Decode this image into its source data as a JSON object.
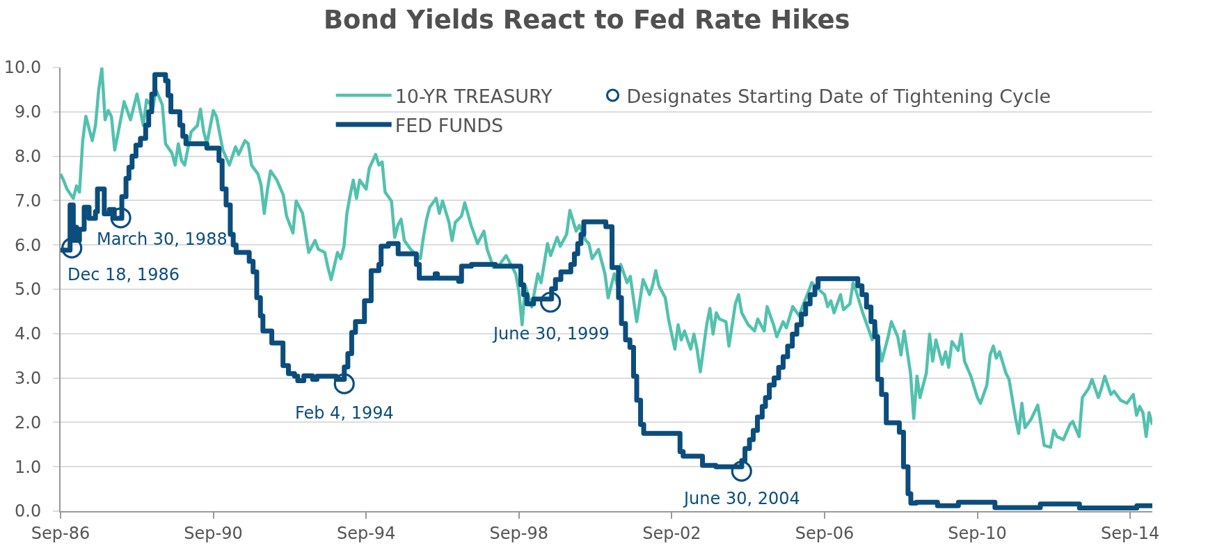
{
  "chart_data": {
    "type": "line",
    "title": "Bond Yields React to Fed Rate Hikes",
    "xlim": [
      "1986-09-01",
      "2015-04-01"
    ],
    "xticks": [
      {
        "value": "1986-09-01",
        "label": "Sep-86"
      },
      {
        "value": "1990-09-01",
        "label": "Sep-90"
      },
      {
        "value": "1994-09-01",
        "label": "Sep-94"
      },
      {
        "value": "1998-09-01",
        "label": "Sep-98"
      },
      {
        "value": "2002-09-01",
        "label": "Sep-02"
      },
      {
        "value": "2006-09-01",
        "label": "Sep-06"
      },
      {
        "value": "2010-09-01",
        "label": "Sep-10"
      },
      {
        "value": "2014-09-01",
        "label": "Sep-14"
      }
    ],
    "ylim": [
      0,
      10
    ],
    "yticks": [
      {
        "value": 0,
        "label": "0.0"
      },
      {
        "value": 1,
        "label": "1.0"
      },
      {
        "value": 2,
        "label": "2.0"
      },
      {
        "value": 3,
        "label": "3.0"
      },
      {
        "value": 4,
        "label": "4.0"
      },
      {
        "value": 5,
        "label": "5.0"
      },
      {
        "value": 6,
        "label": "6.0"
      },
      {
        "value": 7,
        "label": "7.0"
      },
      {
        "value": 8,
        "label": "8.0"
      },
      {
        "value": 9,
        "label": "9.0"
      },
      {
        "value": 10,
        "label": "10.0"
      }
    ],
    "grid": "y",
    "legend": "top",
    "series": [
      {
        "name": "10-YR TREASURY",
        "type": "line",
        "color": "#52c1ae",
        "x": [
          "1986-09",
          "1986-10",
          "1986-11",
          "1987-01",
          "1987-02",
          "1987-03",
          "1987-04",
          "1987-05",
          "1987-07",
          "1987-08",
          "1987-09",
          "1987-10",
          "1987-11",
          "1987-12",
          "1988-01",
          "1988-02",
          "1988-03",
          "1988-05",
          "1988-07",
          "1988-09",
          "1988-11",
          "1988-12",
          "1989-02",
          "1989-03",
          "1989-05",
          "1989-06",
          "1989-08",
          "1989-09",
          "1989-10",
          "1989-11",
          "1989-12",
          "1990-02",
          "1990-04",
          "1990-05",
          "1990-06",
          "1990-07",
          "1990-09",
          "1990-10",
          "1990-12",
          "1991-02",
          "1991-04",
          "1991-05",
          "1991-07",
          "1991-08",
          "1991-09",
          "1991-11",
          "1991-12",
          "1992-01",
          "1992-02",
          "1992-03",
          "1992-05",
          "1992-07",
          "1992-08",
          "1992-10",
          "1992-11",
          "1993-01",
          "1993-03",
          "1993-05",
          "1993-06",
          "1993-08",
          "1993-09",
          "1993-10",
          "1993-12",
          "1994-01",
          "1994-02",
          "1994-03",
          "1994-04",
          "1994-05",
          "1994-06",
          "1994-07",
          "1994-09",
          "1994-10",
          "1994-12",
          "1995-01",
          "1995-02",
          "1995-03",
          "1995-05",
          "1995-06",
          "1995-07",
          "1995-08",
          "1995-09",
          "1995-11",
          "1996-02",
          "1996-03",
          "1996-04",
          "1996-05",
          "1996-07",
          "1996-08",
          "1996-09",
          "1996-11",
          "1996-12",
          "1997-01",
          "1997-03",
          "1997-04",
          "1997-06",
          "1997-08",
          "1997-10",
          "1997-11",
          "1998-01",
          "1998-03",
          "1998-05",
          "1998-07",
          "1998-08",
          "1998-09",
          "1998-10",
          "1998-11",
          "1999-01",
          "1999-03",
          "1999-04",
          "1999-06",
          "1999-07",
          "1999-09",
          "1999-10",
          "1999-12",
          "2000-01",
          "2000-03",
          "2000-04",
          "2000-06",
          "2000-07",
          "2000-08",
          "2000-10",
          "2000-12",
          "2001-01",
          "2001-03",
          "2001-04",
          "2001-05",
          "2001-07",
          "2001-08",
          "2001-10",
          "2001-12",
          "2002-02",
          "2002-03",
          "2002-04",
          "2002-05",
          "2002-07",
          "2002-08",
          "2002-10",
          "2002-11",
          "2002-12",
          "2003-01",
          "2003-03",
          "2003-04",
          "2003-05",
          "2003-06",
          "2003-08",
          "2003-09",
          "2003-10",
          "2003-11",
          "2003-12",
          "2004-02",
          "2004-03",
          "2004-05",
          "2004-06",
          "2004-07",
          "2004-09",
          "2004-11",
          "2004-12",
          "2005-02",
          "2005-03",
          "2005-05",
          "2005-06",
          "2005-08",
          "2005-09",
          "2005-11",
          "2006-01",
          "2006-02",
          "2006-04",
          "2006-05",
          "2006-07",
          "2006-09",
          "2006-10",
          "2006-11",
          "2006-12",
          "2007-02",
          "2007-03",
          "2007-05",
          "2007-06",
          "2007-07",
          "2007-09",
          "2007-10",
          "2007-12",
          "2008-01",
          "2008-03",
          "2008-05",
          "2008-06",
          "2008-08",
          "2008-09",
          "2008-10",
          "2008-12",
          "2009-01",
          "2009-02",
          "2009-03",
          "2009-05",
          "2009-06",
          "2009-07",
          "2009-08",
          "2009-10",
          "2009-11",
          "2009-12",
          "2010-01",
          "2010-03",
          "2010-04",
          "2010-05",
          "2010-07",
          "2010-09",
          "2010-10",
          "2010-12",
          "2011-01",
          "2011-02",
          "2011-03",
          "2011-04",
          "2011-06",
          "2011-07",
          "2011-09",
          "2011-10",
          "2011-11",
          "2011-12",
          "2012-02",
          "2012-04",
          "2012-05",
          "2012-06",
          "2012-08",
          "2012-09",
          "2012-10",
          "2012-12",
          "2013-02",
          "2013-03",
          "2013-05",
          "2013-06",
          "2013-08",
          "2013-09",
          "2013-11",
          "2013-12",
          "2014-01",
          "2014-03",
          "2014-04",
          "2014-06",
          "2014-08",
          "2014-10",
          "2014-11",
          "2014-12",
          "2015-01",
          "2015-02",
          "2015-03",
          "2015-04"
        ],
        "values": [
          7.6,
          7.45,
          7.26,
          7.05,
          7.33,
          7.19,
          8.35,
          8.9,
          8.35,
          8.69,
          9.5,
          9.98,
          8.82,
          9.03,
          8.89,
          8.14,
          8.48,
          9.23,
          8.82,
          9.4,
          8.69,
          9.27,
          9.1,
          9.5,
          9.16,
          8.28,
          8.07,
          7.8,
          8.28,
          7.9,
          7.8,
          8.55,
          8.69,
          9.06,
          8.55,
          8.28,
          9.03,
          8.89,
          8.14,
          7.8,
          8.21,
          8.04,
          8.35,
          8.28,
          7.8,
          7.6,
          7.36,
          6.71,
          7.26,
          7.67,
          7.46,
          7.12,
          6.65,
          6.27,
          6.99,
          6.71,
          5.83,
          6.1,
          5.9,
          5.83,
          5.49,
          5.22,
          5.83,
          5.69,
          5.97,
          6.71,
          7.12,
          7.46,
          7.05,
          7.46,
          7.26,
          7.73,
          8.04,
          7.8,
          7.87,
          7.19,
          6.99,
          6.17,
          6.44,
          6.58,
          6.1,
          5.9,
          5.69,
          6.17,
          6.58,
          6.85,
          7.05,
          6.71,
          6.99,
          6.51,
          6.1,
          6.51,
          6.65,
          6.95,
          6.44,
          6.03,
          6.31,
          5.9,
          5.49,
          5.56,
          5.76,
          5.49,
          5.35,
          4.95,
          4.2,
          5.08,
          4.6,
          5.35,
          5.15,
          6.03,
          5.76,
          6.17,
          5.97,
          6.24,
          6.78,
          6.31,
          6.44,
          6.1,
          6.03,
          5.69,
          5.9,
          5.35,
          4.81,
          5.35,
          5.08,
          5.56,
          5.15,
          5.29,
          4.27,
          5.22,
          4.88,
          5.08,
          5.42,
          5.08,
          4.81,
          4.33,
          3.65,
          4.2,
          3.86,
          4.06,
          3.65,
          3.99,
          3.65,
          3.14,
          4.2,
          4.57,
          3.99,
          4.47,
          4.33,
          4.27,
          3.72,
          4.67,
          4.88,
          4.47,
          4.2,
          4.06,
          4.33,
          4.06,
          4.61,
          4.2,
          3.93,
          4.27,
          4.13,
          4.61,
          4.4,
          4.61,
          4.95,
          5.15,
          5.01,
          4.88,
          4.61,
          4.74,
          4.47,
          4.88,
          4.54,
          4.67,
          5.15,
          4.95,
          4.47,
          4.27,
          3.86,
          4.2,
          3.38,
          3.93,
          4.27,
          3.93,
          3.52,
          4.06,
          3.11,
          2.09,
          3.04,
          2.56,
          3.11,
          3.99,
          3.38,
          3.86,
          3.31,
          3.59,
          3.24,
          3.82,
          3.62,
          3.99,
          3.38,
          3.04,
          2.56,
          2.43,
          2.84,
          3.52,
          3.72,
          3.45,
          3.59,
          3.11,
          2.97,
          2.09,
          1.75,
          2.43,
          1.88,
          2.09,
          2.39,
          1.95,
          1.48,
          1.44,
          1.82,
          1.68,
          1.61,
          1.95,
          2.02,
          1.68,
          2.56,
          2.77,
          2.97,
          2.56,
          2.77,
          3.04,
          2.63,
          2.7,
          2.5,
          2.43,
          2.63,
          2.16,
          2.36,
          2.22,
          1.68,
          2.22,
          1.95
        ]
      },
      {
        "name": "FED FUNDS",
        "type": "step",
        "color": "#0b4d7c",
        "x": [
          "1986-09-01",
          "1986-12-01",
          "1987-01-01",
          "1987-01-15",
          "1987-02-01",
          "1987-03-01",
          "1987-04-15",
          "1987-06-01",
          "1987-08-01",
          "1987-08-20",
          "1987-10-24",
          "1987-12-12",
          "1988-01-28",
          "1988-04-09",
          "1988-05-19",
          "1988-06-16",
          "1988-07-16",
          "1988-08-22",
          "1988-10-04",
          "1988-11-23",
          "1988-12-22",
          "1989-01-20",
          "1989-02-19",
          "1989-06-01",
          "1989-06-25",
          "1989-07-22",
          "1989-10-16",
          "1989-11-13",
          "1989-12-13",
          "1990-07-01",
          "1990-10-25",
          "1990-11-24",
          "1991-01-01",
          "1991-02-10",
          "1991-03-10",
          "1991-04-07",
          "1991-08-10",
          "1991-09-16",
          "1991-10-21",
          "1991-11-25",
          "1991-12-19",
          "1992-03-13",
          "1992-06-28",
          "1992-08-19",
          "1992-10-16",
          "1992-11-16",
          "1993-01-13",
          "1993-04-07",
          "1993-05-19",
          "1993-11-20",
          "1994-02-04",
          "1994-03-10",
          "1994-04-16",
          "1994-05-22",
          "1994-08-16",
          "1994-10-19",
          "1995-01-01",
          "1995-01-22",
          "1995-04-01",
          "1995-07-04",
          "1995-12-25",
          "1996-01-22",
          "1996-06-22",
          "1996-07-13",
          "1997-02-01",
          "1997-03-01",
          "1997-06-04",
          "1998-01-19",
          "1998-09-19",
          "1998-10-16",
          "1998-11-16",
          "1999-01-19",
          "1999-07-10",
          "1999-08-16",
          "1999-10-07",
          "2000-01-10",
          "2000-02-13",
          "2000-03-16",
          "2000-04-16",
          "2000-05-13",
          "2000-12-10",
          "2001-02-07",
          "2001-04-10",
          "2001-05-08",
          "2001-06-16",
          "2001-07-28",
          "2001-09-01",
          "2001-10-01",
          "2001-11-07",
          "2001-12-07",
          "2002-11-19",
          "2002-12-19",
          "2003-06-22",
          "2003-10-28",
          "2004-07-01",
          "2004-08-01",
          "2004-09-13",
          "2004-10-19",
          "2004-11-28",
          "2005-01-13",
          "2005-02-13",
          "2005-03-22",
          "2005-05-07",
          "2005-06-19",
          "2005-08-01",
          "2005-09-13",
          "2005-10-28",
          "2005-12-10",
          "2006-01-22",
          "2006-03-04",
          "2006-04-16",
          "2006-06-01",
          "2006-07-01",
          "2007-07-16",
          "2007-08-25",
          "2007-10-07",
          "2007-11-19",
          "2007-12-25",
          "2008-01-22",
          "2008-02-28",
          "2008-04-13",
          "2008-08-16",
          "2008-09-25",
          "2008-11-07",
          "2008-12-04",
          "2009-01-25",
          "2009-08-16",
          "2010-03-04",
          "2011-02-16",
          "2012-04-25",
          "2013-05-04",
          "2014-11-04",
          "2015-04-01"
        ],
        "values": [
          5.88,
          6.9,
          6.1,
          6.4,
          6.1,
          6.35,
          6.85,
          6.6,
          6.75,
          7.26,
          6.7,
          6.8,
          6.6,
          7.09,
          7.5,
          7.75,
          8.0,
          8.25,
          8.4,
          8.7,
          9.0,
          9.4,
          9.84,
          9.7,
          9.37,
          9.0,
          8.7,
          8.45,
          8.28,
          8.18,
          7.9,
          7.26,
          6.9,
          6.24,
          6.0,
          5.83,
          5.63,
          5.39,
          4.81,
          4.4,
          4.06,
          3.79,
          3.28,
          3.1,
          3.04,
          2.94,
          3.05,
          2.97,
          3.04,
          2.97,
          3.25,
          3.55,
          4.03,
          4.27,
          4.74,
          5.42,
          5.56,
          5.97,
          6.03,
          5.8,
          5.56,
          5.25,
          5.35,
          5.25,
          5.18,
          5.52,
          5.56,
          5.52,
          5.1,
          4.88,
          4.67,
          4.78,
          5.01,
          5.22,
          5.39,
          5.56,
          5.8,
          6.03,
          6.24,
          6.52,
          6.41,
          5.49,
          4.81,
          4.23,
          3.86,
          3.69,
          3.04,
          2.5,
          1.95,
          1.75,
          1.34,
          1.24,
          1.03,
          1.0,
          1.14,
          1.41,
          1.61,
          1.82,
          2.12,
          2.36,
          2.56,
          2.84,
          3.0,
          3.24,
          3.48,
          3.72,
          3.99,
          4.2,
          4.44,
          4.67,
          4.88,
          5.05,
          5.24,
          5.08,
          4.88,
          4.6,
          4.27,
          3.93,
          2.97,
          2.63,
          1.99,
          1.78,
          1.0,
          0.39,
          0.18,
          0.2,
          0.12,
          0.2,
          0.08,
          0.16,
          0.07,
          0.12,
          0.12
        ]
      },
      {
        "name": "Designates Starting Date of Tightening Cycle",
        "type": "scatter",
        "color": "#0b4d7c",
        "marker": "circle",
        "x": [
          "1986-12-18",
          "1988-03-30",
          "1994-02-04",
          "1999-06-30",
          "2004-06-30"
        ],
        "values": [
          5.93,
          6.61,
          2.87,
          4.71,
          0.9
        ]
      }
    ],
    "annotations": [
      {
        "text": "Dec 18, 1986",
        "x": "1986-12-18",
        "y": 5.93
      },
      {
        "text": "March 30, 1988",
        "x": "1988-03-30",
        "y": 6.61
      },
      {
        "text": "Feb 4, 1994",
        "x": "1994-02-04",
        "y": 2.87
      },
      {
        "text": "June 30, 1999",
        "x": "1999-06-30",
        "y": 4.71
      },
      {
        "text": "June 30, 2004",
        "x": "2004-06-30",
        "y": 0.9
      }
    ]
  }
}
